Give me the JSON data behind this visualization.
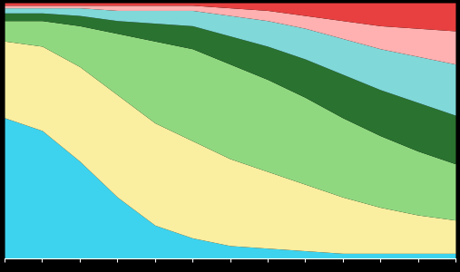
{
  "ages": [
    18,
    19,
    20,
    21,
    22,
    23,
    24,
    25,
    26,
    27,
    28,
    29,
    30
  ],
  "series": {
    "cyan_blue": [
      55,
      50,
      38,
      24,
      13,
      8,
      5,
      4,
      3,
      2,
      2,
      2,
      2
    ],
    "yellow": [
      30,
      33,
      37,
      40,
      40,
      38,
      34,
      30,
      26,
      22,
      18,
      15,
      13
    ],
    "light_green": [
      8,
      10,
      16,
      24,
      32,
      36,
      37,
      36,
      34,
      31,
      28,
      25,
      22
    ],
    "dark_green": [
      3,
      3,
      4,
      5,
      7,
      9,
      11,
      13,
      15,
      17,
      18,
      19,
      19
    ],
    "teal": [
      2,
      2,
      3,
      4,
      5,
      6,
      8,
      10,
      12,
      14,
      16,
      18,
      20
    ],
    "light_red": [
      1,
      1,
      1,
      2,
      2,
      2,
      3,
      4,
      5,
      7,
      9,
      11,
      13
    ],
    "red": [
      1,
      1,
      1,
      1,
      1,
      1,
      2,
      3,
      5,
      7,
      9,
      10,
      11
    ]
  },
  "colors": {
    "cyan_blue": "#3DD3EE",
    "yellow": "#FAEEA0",
    "light_green": "#90D880",
    "dark_green": "#2A7230",
    "teal": "#80D8D8",
    "light_red": "#FFB0B0",
    "red": "#E84040"
  },
  "xlim": [
    18,
    30
  ],
  "ylim": [
    0,
    100
  ],
  "tick_ages": [
    18,
    19,
    20,
    21,
    22,
    23,
    24,
    25,
    26,
    27,
    28,
    29,
    30
  ],
  "background_color": "#000000",
  "figsize": [
    5.07,
    3.0
  ],
  "dpi": 100
}
